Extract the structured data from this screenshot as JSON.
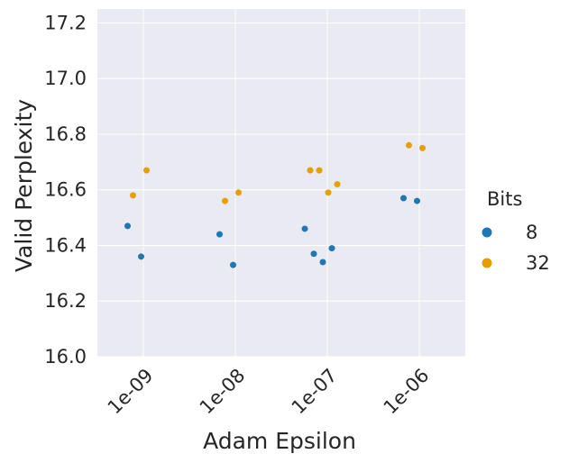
{
  "chart_data": {
    "type": "scatter",
    "title": "",
    "xlabel": "Adam Epsilon",
    "ylabel": "Valid Perplexity",
    "x_categories": [
      "1e-09",
      "1e-08",
      "1e-07",
      "1e-06"
    ],
    "ylim": [
      16.0,
      17.25
    ],
    "y_ticks": [
      "16.0",
      "16.2",
      "16.4",
      "16.6",
      "16.8",
      "17.0",
      "17.2"
    ],
    "grid": true,
    "legend": {
      "title": "Bits",
      "placement": "right"
    },
    "series": [
      {
        "name": "8",
        "color": "#1f77b4",
        "points": [
          {
            "x": "1e-09",
            "y": 16.47
          },
          {
            "x": "1e-09",
            "y": 16.36
          },
          {
            "x": "1e-08",
            "y": 16.44
          },
          {
            "x": "1e-08",
            "y": 16.33
          },
          {
            "x": "1e-07",
            "y": 16.46
          },
          {
            "x": "1e-07",
            "y": 16.37
          },
          {
            "x": "1e-07",
            "y": 16.34
          },
          {
            "x": "1e-07",
            "y": 16.39
          },
          {
            "x": "1e-06",
            "y": 16.57
          },
          {
            "x": "1e-06",
            "y": 16.56
          }
        ]
      },
      {
        "name": "32",
        "color": "#e69f00",
        "points": [
          {
            "x": "1e-09",
            "y": 16.58
          },
          {
            "x": "1e-09",
            "y": 16.67
          },
          {
            "x": "1e-08",
            "y": 16.56
          },
          {
            "x": "1e-08",
            "y": 16.59
          },
          {
            "x": "1e-07",
            "y": 16.67
          },
          {
            "x": "1e-07",
            "y": 16.67
          },
          {
            "x": "1e-07",
            "y": 16.59
          },
          {
            "x": "1e-07",
            "y": 16.62
          },
          {
            "x": "1e-06",
            "y": 16.76
          },
          {
            "x": "1e-06",
            "y": 16.75
          }
        ]
      }
    ]
  }
}
